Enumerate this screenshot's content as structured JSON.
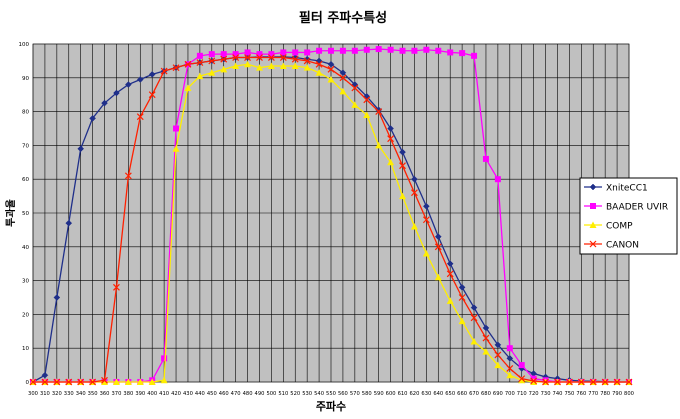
{
  "chart_data": {
    "type": "line",
    "title": "필터 주파수특성",
    "xlabel": "주파수",
    "ylabel": "투과율",
    "xlim": [
      300,
      800
    ],
    "ylim": [
      0,
      100
    ],
    "grid": true,
    "legend_position": "right",
    "x": [
      300,
      310,
      320,
      330,
      340,
      350,
      360,
      370,
      380,
      390,
      400,
      410,
      420,
      430,
      440,
      450,
      460,
      470,
      480,
      490,
      500,
      510,
      520,
      530,
      540,
      550,
      560,
      570,
      580,
      590,
      600,
      610,
      620,
      630,
      640,
      650,
      660,
      670,
      680,
      690,
      700,
      710,
      720,
      730,
      740,
      750,
      760,
      770,
      780,
      790,
      800
    ],
    "series": [
      {
        "name": "XniteCC1",
        "color": "#1f2f8a",
        "marker": "diamond",
        "values": [
          0,
          2,
          25,
          47,
          69,
          78,
          82.5,
          85.5,
          88,
          89.5,
          91,
          92,
          93,
          94,
          94.5,
          95,
          95.5,
          96,
          96,
          96.2,
          96.2,
          96.2,
          96,
          95.5,
          95,
          94,
          91.5,
          88,
          84.5,
          80.5,
          75,
          68,
          60,
          52,
          43,
          35,
          28,
          22,
          16,
          11,
          7,
          4,
          2.5,
          1.5,
          1,
          0.5,
          0.3,
          0.2,
          0.1,
          0,
          0
        ]
      },
      {
        "name": "BAADER UVIR",
        "color": "#ff00ff",
        "marker": "square",
        "values": [
          0,
          0,
          0,
          0,
          0,
          0,
          0,
          0,
          0,
          0,
          0.5,
          7,
          75,
          94,
          96.5,
          97,
          97,
          97,
          97.5,
          97,
          97,
          97.5,
          97.5,
          97.5,
          98,
          98,
          98,
          98,
          98.3,
          98.5,
          98.3,
          98,
          98,
          98.3,
          98,
          97.5,
          97.3,
          96.5,
          66,
          60,
          10,
          5,
          1,
          0.5,
          0,
          0,
          0,
          0,
          0,
          0,
          0
        ]
      },
      {
        "name": "COMP",
        "color": "#ffee00",
        "marker": "triangle",
        "values": [
          0,
          0,
          0,
          0,
          0,
          0,
          0,
          0,
          0,
          0,
          0,
          0.5,
          69,
          87,
          90.5,
          91.5,
          92.5,
          93.5,
          94,
          93,
          93.5,
          93.5,
          93.5,
          93,
          91.5,
          89.5,
          86,
          82,
          79,
          70,
          65,
          55,
          46,
          38,
          31,
          24,
          18,
          12,
          9,
          5,
          2,
          0.5,
          0,
          0,
          0,
          0,
          0,
          0,
          0,
          0,
          0
        ]
      },
      {
        "name": "CANON",
        "color": "#ff2000",
        "marker": "x",
        "values": [
          0,
          0,
          0,
          0,
          0,
          0,
          0.5,
          28,
          61,
          78.5,
          85,
          92,
          93,
          94,
          94.5,
          95,
          95.5,
          96,
          96,
          96,
          96,
          96,
          95.5,
          95,
          94,
          92.5,
          90,
          87,
          83.5,
          80,
          72,
          64,
          56,
          48,
          40,
          32,
          25,
          19,
          13,
          8,
          4,
          1,
          0.3,
          0,
          0,
          0,
          0,
          0,
          0,
          0,
          0
        ]
      }
    ],
    "yticks": [
      0,
      10,
      20,
      30,
      40,
      50,
      60,
      70,
      80,
      90,
      100
    ],
    "xticks": [
      300,
      310,
      320,
      330,
      340,
      350,
      360,
      370,
      380,
      390,
      400,
      410,
      420,
      430,
      440,
      450,
      460,
      470,
      480,
      490,
      500,
      510,
      520,
      530,
      540,
      550,
      560,
      570,
      580,
      590,
      600,
      610,
      620,
      630,
      640,
      650,
      660,
      670,
      680,
      690,
      700,
      710,
      720,
      730,
      740,
      750,
      760,
      770,
      780,
      790,
      800
    ]
  }
}
